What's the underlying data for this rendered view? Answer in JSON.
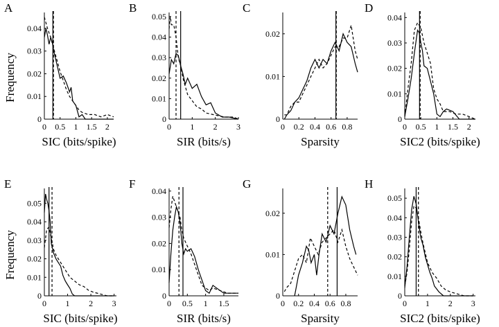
{
  "figure": {
    "ylabel": "Frequency"
  },
  "style": {
    "solid_color": "#000000",
    "dashed_color": "#000000"
  },
  "chart_data": [
    {
      "type": "line",
      "panel": "A",
      "xlabel": "SIC (bits/spike)",
      "ylabel": "Frequency",
      "xlim": [
        0,
        2.2
      ],
      "ylim": [
        0,
        0.047
      ],
      "xticks": [
        0,
        0.5,
        1,
        1.5,
        2
      ],
      "xticklabels": [
        "0",
        "0.5",
        "1",
        "1.5",
        "2"
      ],
      "yticks": [
        0,
        0.01,
        0.02,
        0.03,
        0.04
      ],
      "yticklabels": [
        "0",
        "0.01",
        "0.02",
        "0.03",
        "0.04"
      ],
      "vlines": [
        {
          "x": 0.27,
          "style": "solid"
        },
        {
          "x": 0.29,
          "style": "dashed"
        }
      ],
      "series": [
        {
          "style": "solid",
          "x": [
            0,
            0.05,
            0.1,
            0.15,
            0.2,
            0.25,
            0.3,
            0.35,
            0.4,
            0.5,
            0.6,
            0.7,
            0.8,
            0.85,
            0.9,
            1.0,
            1.1,
            1.2,
            1.3,
            1.5,
            1.7,
            2.0,
            2.2
          ],
          "y": [
            0.036,
            0.04,
            0.037,
            0.033,
            0.036,
            0.034,
            0.03,
            0.027,
            0.024,
            0.018,
            0.019,
            0.016,
            0.012,
            0.014,
            0.008,
            0.006,
            0.001,
            0.002,
            0.0,
            0.0,
            0.0,
            0.0,
            0.0
          ]
        },
        {
          "style": "dashed",
          "x": [
            0,
            0.1,
            0.2,
            0.3,
            0.4,
            0.5,
            0.6,
            0.7,
            0.8,
            0.9,
            1.0,
            1.1,
            1.2,
            1.4,
            1.6,
            1.8,
            2.0,
            2.2
          ],
          "y": [
            0.045,
            0.04,
            0.036,
            0.031,
            0.026,
            0.021,
            0.017,
            0.013,
            0.01,
            0.008,
            0.006,
            0.004,
            0.003,
            0.002,
            0.002,
            0.001,
            0.002,
            0.001
          ]
        }
      ]
    },
    {
      "type": "line",
      "panel": "B",
      "xlabel": "SIR (bits/s)",
      "ylabel": "",
      "xlim": [
        0,
        3.0
      ],
      "ylim": [
        0,
        0.052
      ],
      "xticks": [
        0,
        1,
        2,
        3
      ],
      "xticklabels": [
        "0",
        "1",
        "2",
        "3"
      ],
      "yticks": [
        0,
        0.01,
        0.02,
        0.03,
        0.04,
        0.05
      ],
      "yticklabels": [
        "0",
        "0.01",
        "0.02",
        "0.03",
        "0.04",
        "0.05"
      ],
      "vlines": [
        {
          "x": 0.5,
          "style": "solid"
        },
        {
          "x": 0.3,
          "style": "dashed"
        }
      ],
      "series": [
        {
          "style": "solid",
          "x": [
            0,
            0.1,
            0.2,
            0.3,
            0.4,
            0.5,
            0.6,
            0.7,
            0.8,
            1.0,
            1.2,
            1.4,
            1.6,
            1.8,
            2.0,
            2.3,
            2.6,
            3.0
          ],
          "y": [
            0.022,
            0.029,
            0.027,
            0.032,
            0.031,
            0.026,
            0.022,
            0.017,
            0.02,
            0.015,
            0.017,
            0.011,
            0.007,
            0.008,
            0.003,
            0.001,
            0.001,
            0.0
          ]
        },
        {
          "style": "dashed",
          "x": [
            0,
            0.05,
            0.1,
            0.2,
            0.3,
            0.4,
            0.5,
            0.6,
            0.8,
            1.0,
            1.2,
            1.4,
            1.6,
            2.0,
            2.4,
            2.8,
            3.0
          ],
          "y": [
            0.044,
            0.05,
            0.046,
            0.046,
            0.04,
            0.03,
            0.026,
            0.02,
            0.012,
            0.009,
            0.006,
            0.005,
            0.003,
            0.002,
            0.001,
            0.001,
            0.0
          ]
        }
      ]
    },
    {
      "type": "line",
      "panel": "C",
      "xlabel": "Sparsity",
      "ylabel": "",
      "xlim": [
        0,
        0.93
      ],
      "ylim": [
        0,
        0.025
      ],
      "xticks": [
        0,
        0.2,
        0.4,
        0.6,
        0.8
      ],
      "xticklabels": [
        "0",
        "0.2",
        "0.4",
        "0.6",
        "0.8"
      ],
      "yticks": [
        0,
        0.01,
        0.02
      ],
      "yticklabels": [
        "0",
        "0.01",
        "0.02"
      ],
      "vlines": [
        {
          "x": 0.66,
          "style": "solid"
        },
        {
          "x": 0.665,
          "style": "dashed"
        }
      ],
      "series": [
        {
          "style": "solid",
          "x": [
            0.02,
            0.05,
            0.1,
            0.15,
            0.2,
            0.25,
            0.3,
            0.35,
            0.4,
            0.45,
            0.5,
            0.55,
            0.6,
            0.65,
            0.7,
            0.75,
            0.8,
            0.85,
            0.9,
            0.93
          ],
          "y": [
            0.0,
            0.001,
            0.002,
            0.004,
            0.005,
            0.007,
            0.009,
            0.012,
            0.014,
            0.012,
            0.014,
            0.013,
            0.016,
            0.018,
            0.016,
            0.02,
            0.018,
            0.017,
            0.013,
            0.011
          ]
        },
        {
          "style": "dashed",
          "x": [
            0.02,
            0.05,
            0.1,
            0.15,
            0.2,
            0.25,
            0.3,
            0.35,
            0.4,
            0.45,
            0.5,
            0.55,
            0.6,
            0.65,
            0.7,
            0.75,
            0.8,
            0.85,
            0.9,
            0.93
          ],
          "y": [
            0.001,
            0.001,
            0.003,
            0.004,
            0.004,
            0.006,
            0.008,
            0.01,
            0.012,
            0.014,
            0.012,
            0.013,
            0.015,
            0.017,
            0.017,
            0.019,
            0.019,
            0.022,
            0.016,
            0.014
          ]
        }
      ]
    },
    {
      "type": "line",
      "panel": "D",
      "xlabel": "SIC2 (bits/spike)",
      "ylabel": "",
      "xlim": [
        0,
        2.2
      ],
      "ylim": [
        0,
        0.042
      ],
      "xticks": [
        0,
        0.5,
        1,
        1.5,
        2
      ],
      "xticklabels": [
        "0",
        "0.5",
        "1",
        "1.5",
        "2"
      ],
      "yticks": [
        0,
        0.01,
        0.02,
        0.03,
        0.04
      ],
      "yticklabels": [
        "0",
        "0.01",
        "0.02",
        "0.03",
        "0.04"
      ],
      "vlines": [
        {
          "x": 0.46,
          "style": "solid"
        },
        {
          "x": 0.48,
          "style": "dashed"
        }
      ],
      "series": [
        {
          "style": "solid",
          "x": [
            0,
            0.1,
            0.2,
            0.3,
            0.4,
            0.45,
            0.5,
            0.55,
            0.6,
            0.7,
            0.8,
            0.9,
            1.0,
            1.1,
            1.2,
            1.3,
            1.5,
            1.7,
            2.0,
            2.2
          ],
          "y": [
            0.001,
            0.008,
            0.016,
            0.026,
            0.035,
            0.034,
            0.03,
            0.027,
            0.021,
            0.02,
            0.015,
            0.01,
            0.002,
            0.001,
            0.003,
            0.004,
            0.003,
            0.0,
            0.0,
            0.0
          ]
        },
        {
          "style": "dashed",
          "x": [
            0,
            0.1,
            0.2,
            0.3,
            0.4,
            0.5,
            0.6,
            0.7,
            0.8,
            0.9,
            1.0,
            1.1,
            1.2,
            1.4,
            1.6,
            1.8,
            2.0,
            2.2
          ],
          "y": [
            0.001,
            0.012,
            0.022,
            0.035,
            0.038,
            0.036,
            0.03,
            0.026,
            0.022,
            0.012,
            0.008,
            0.006,
            0.003,
            0.003,
            0.002,
            0.002,
            0.001,
            0.0
          ]
        }
      ]
    },
    {
      "type": "line",
      "panel": "E",
      "xlabel": "SIC (bits/spike)",
      "ylabel": "Frequency",
      "xlim": [
        0,
        3.1
      ],
      "ylim": [
        0,
        0.058
      ],
      "xticks": [
        0,
        1,
        2,
        3
      ],
      "xticklabels": [
        "0",
        "1",
        "2",
        "3"
      ],
      "yticks": [
        0,
        0.01,
        0.02,
        0.03,
        0.04,
        0.05
      ],
      "yticklabels": [
        "0",
        "0.01",
        "0.02",
        "0.03",
        "0.04",
        "0.05"
      ],
      "vlines": [
        {
          "x": 0.2,
          "style": "solid"
        },
        {
          "x": 0.33,
          "style": "dashed"
        }
      ],
      "series": [
        {
          "style": "solid",
          "x": [
            0,
            0.05,
            0.1,
            0.15,
            0.2,
            0.25,
            0.3,
            0.4,
            0.5,
            0.6,
            0.7,
            0.8,
            0.9,
            1.0,
            1.1,
            1.2,
            1.3,
            1.5,
            2.0,
            3.0
          ],
          "y": [
            0.045,
            0.055,
            0.052,
            0.05,
            0.046,
            0.04,
            0.028,
            0.023,
            0.02,
            0.018,
            0.016,
            0.011,
            0.008,
            0.006,
            0.004,
            0.001,
            0.0,
            0.0,
            0.0,
            0.0
          ]
        },
        {
          "style": "dashed",
          "x": [
            0,
            0.1,
            0.2,
            0.3,
            0.4,
            0.5,
            0.7,
            0.9,
            1.1,
            1.3,
            1.5,
            1.7,
            1.9,
            2.1,
            2.4,
            2.7,
            3.0
          ],
          "y": [
            0.026,
            0.036,
            0.037,
            0.031,
            0.025,
            0.022,
            0.018,
            0.014,
            0.01,
            0.008,
            0.006,
            0.005,
            0.003,
            0.002,
            0.001,
            0.0,
            0.0
          ]
        }
      ]
    },
    {
      "type": "line",
      "panel": "F",
      "xlabel": "SIR (bits/s)",
      "ylabel": "",
      "xlim": [
        0,
        1.9
      ],
      "ylim": [
        0,
        0.041
      ],
      "xticks": [
        0,
        0.5,
        1,
        1.5
      ],
      "xticklabels": [
        "0",
        "0.5",
        "1",
        "1.5"
      ],
      "yticks": [
        0,
        0.01,
        0.02,
        0.03,
        0.04
      ],
      "yticklabels": [
        "0",
        "0.01",
        "0.02",
        "0.03",
        "0.04"
      ],
      "vlines": [
        {
          "x": 0.38,
          "style": "solid"
        },
        {
          "x": 0.27,
          "style": "dashed"
        }
      ],
      "series": [
        {
          "style": "solid",
          "x": [
            0,
            0.05,
            0.1,
            0.15,
            0.2,
            0.25,
            0.3,
            0.35,
            0.4,
            0.45,
            0.5,
            0.6,
            0.7,
            0.8,
            0.9,
            1.0,
            1.1,
            1.2,
            1.3,
            1.5,
            1.7,
            1.9
          ],
          "y": [
            0.005,
            0.016,
            0.025,
            0.03,
            0.034,
            0.032,
            0.028,
            0.02,
            0.016,
            0.018,
            0.017,
            0.018,
            0.015,
            0.01,
            0.006,
            0.002,
            0.001,
            0.004,
            0.003,
            0.001,
            0.001,
            0.001
          ]
        },
        {
          "style": "dashed",
          "x": [
            0,
            0.05,
            0.1,
            0.15,
            0.2,
            0.25,
            0.3,
            0.35,
            0.4,
            0.5,
            0.6,
            0.7,
            0.8,
            0.9,
            1.0,
            1.1,
            1.2,
            1.4,
            1.6,
            1.9
          ],
          "y": [
            0.026,
            0.033,
            0.038,
            0.036,
            0.034,
            0.032,
            0.03,
            0.025,
            0.022,
            0.019,
            0.016,
            0.012,
            0.008,
            0.004,
            0.003,
            0.002,
            0.003,
            0.002,
            0.001,
            0.001
          ]
        }
      ]
    },
    {
      "type": "line",
      "panel": "G",
      "xlabel": "Sparsity",
      "ylabel": "",
      "xlim": [
        0,
        0.95
      ],
      "ylim": [
        0,
        0.026
      ],
      "xticks": [
        0,
        0.2,
        0.4,
        0.6,
        0.8
      ],
      "xticklabels": [
        "0",
        "0.2",
        "0.4",
        "0.6",
        "0.8"
      ],
      "yticks": [
        0,
        0.01,
        0.02
      ],
      "yticklabels": [
        "0",
        "0.01",
        "0.02"
      ],
      "vlines": [
        {
          "x": 0.69,
          "style": "solid"
        },
        {
          "x": 0.57,
          "style": "dashed"
        }
      ],
      "series": [
        {
          "style": "solid",
          "x": [
            0.15,
            0.18,
            0.2,
            0.25,
            0.3,
            0.33,
            0.36,
            0.4,
            0.43,
            0.46,
            0.5,
            0.55,
            0.6,
            0.65,
            0.7,
            0.75,
            0.8,
            0.85,
            0.9,
            0.93
          ],
          "y": [
            0.0,
            0.003,
            0.005,
            0.008,
            0.012,
            0.011,
            0.008,
            0.01,
            0.005,
            0.01,
            0.015,
            0.013,
            0.017,
            0.015,
            0.02,
            0.024,
            0.022,
            0.016,
            0.012,
            0.01
          ]
        },
        {
          "style": "dashed",
          "x": [
            0.02,
            0.05,
            0.1,
            0.15,
            0.2,
            0.25,
            0.3,
            0.35,
            0.4,
            0.45,
            0.5,
            0.55,
            0.6,
            0.65,
            0.7,
            0.75,
            0.8,
            0.85,
            0.9,
            0.95
          ],
          "y": [
            0.001,
            0.002,
            0.003,
            0.006,
            0.009,
            0.01,
            0.008,
            0.014,
            0.012,
            0.01,
            0.013,
            0.014,
            0.015,
            0.016,
            0.013,
            0.016,
            0.012,
            0.009,
            0.007,
            0.005
          ]
        }
      ]
    },
    {
      "type": "line",
      "panel": "H",
      "xlabel": "SIC2 (bits/spike)",
      "ylabel": "",
      "xlim": [
        0,
        3.1
      ],
      "ylim": [
        0,
        0.055
      ],
      "xticks": [
        0,
        1,
        2,
        3
      ],
      "xticklabels": [
        "0",
        "1",
        "2",
        "3"
      ],
      "yticks": [
        0,
        0.01,
        0.02,
        0.03,
        0.04,
        0.05
      ],
      "yticklabels": [
        "0",
        "0.01",
        "0.02",
        "0.03",
        "0.04",
        "0.05"
      ],
      "vlines": [
        {
          "x": 0.5,
          "style": "solid"
        },
        {
          "x": 0.6,
          "style": "dashed"
        }
      ],
      "series": [
        {
          "style": "solid",
          "x": [
            0,
            0.1,
            0.2,
            0.3,
            0.4,
            0.5,
            0.6,
            0.7,
            0.8,
            0.9,
            1.0,
            1.1,
            1.2,
            1.3,
            1.5,
            1.7,
            2.0,
            3.0
          ],
          "y": [
            0.004,
            0.015,
            0.03,
            0.044,
            0.051,
            0.047,
            0.038,
            0.03,
            0.026,
            0.02,
            0.016,
            0.012,
            0.009,
            0.005,
            0.002,
            0.0,
            0.0,
            0.0
          ]
        },
        {
          "style": "dashed",
          "x": [
            0,
            0.1,
            0.2,
            0.3,
            0.4,
            0.5,
            0.6,
            0.7,
            0.8,
            0.9,
            1.0,
            1.2,
            1.4,
            1.6,
            1.8,
            2.0,
            2.3,
            2.6,
            3.0
          ],
          "y": [
            0.005,
            0.012,
            0.024,
            0.038,
            0.046,
            0.045,
            0.04,
            0.033,
            0.027,
            0.022,
            0.017,
            0.012,
            0.009,
            0.005,
            0.003,
            0.002,
            0.001,
            0.0,
            0.0
          ]
        }
      ]
    }
  ]
}
